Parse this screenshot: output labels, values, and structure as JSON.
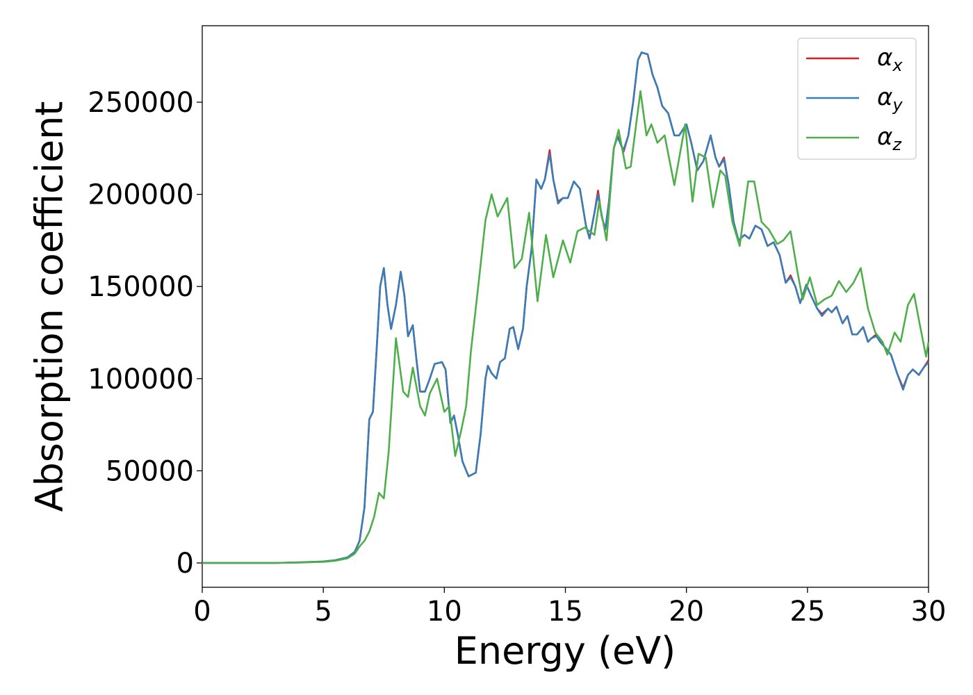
{
  "chart_data": {
    "type": "line",
    "xlabel": "Energy (eV)",
    "ylabel": "Absorption coefficient",
    "xlim": [
      0,
      30
    ],
    "ylim": [
      -13200,
      291500
    ],
    "xticks": [
      0,
      5,
      10,
      15,
      20,
      25,
      30
    ],
    "yticks": [
      0,
      50000,
      100000,
      150000,
      200000,
      250000
    ],
    "legend": "upper right",
    "series": [
      {
        "name": "αx",
        "color": "#e41a1c",
        "x": [
          0,
          1,
          2,
          3,
          4,
          5,
          5.5,
          6,
          6.3,
          6.5,
          6.7,
          6.9,
          7.05,
          7.2,
          7.35,
          7.5,
          7.65,
          7.8,
          8.0,
          8.2,
          8.35,
          8.5,
          8.7,
          8.85,
          9.0,
          9.2,
          9.4,
          9.6,
          9.9,
          10.05,
          10.25,
          10.4,
          10.55,
          10.75,
          11.0,
          11.3,
          11.5,
          11.7,
          11.8,
          11.95,
          12.15,
          12.3,
          12.5,
          12.7,
          12.85,
          13.05,
          13.25,
          13.4,
          13.6,
          13.8,
          14.0,
          14.15,
          14.35,
          14.5,
          14.7,
          14.9,
          15.1,
          15.35,
          15.6,
          15.85,
          16.0,
          16.2,
          16.35,
          16.5,
          16.65,
          16.8,
          17.0,
          17.15,
          17.4,
          17.6,
          17.8,
          18.0,
          18.15,
          18.4,
          18.6,
          18.8,
          19.0,
          19.25,
          19.5,
          19.7,
          19.85,
          20.0,
          20.2,
          20.45,
          20.7,
          20.85,
          21.0,
          21.2,
          21.35,
          21.55,
          21.75,
          21.95,
          22.15,
          22.4,
          22.6,
          22.85,
          23.1,
          23.35,
          23.6,
          23.85,
          24.1,
          24.3,
          24.5,
          24.7,
          24.95,
          25.15,
          25.4,
          25.6,
          25.85,
          26.0,
          26.2,
          26.45,
          26.65,
          26.85,
          27.05,
          27.3,
          27.5,
          27.65,
          27.85,
          28.0,
          28.2,
          28.45,
          28.7,
          28.95,
          29.15,
          29.35,
          29.6,
          29.8,
          30.0
        ],
        "values": [
          0,
          0,
          0,
          0,
          300,
          800,
          1500,
          3000,
          6000,
          12000,
          30000,
          78000,
          82000,
          115000,
          150000,
          160000,
          140000,
          127000,
          140000,
          158000,
          145000,
          123000,
          129000,
          110000,
          93000,
          93000,
          100000,
          108000,
          109000,
          105000,
          76000,
          80000,
          70000,
          55000,
          47000,
          49000,
          70000,
          100000,
          107000,
          103000,
          100000,
          109000,
          111000,
          127000,
          128000,
          116000,
          127000,
          150000,
          170000,
          208000,
          203000,
          208000,
          224000,
          208000,
          196000,
          198000,
          198000,
          207000,
          203000,
          183000,
          176000,
          190000,
          202000,
          188000,
          181000,
          196000,
          225000,
          232000,
          223000,
          232000,
          250000,
          273000,
          277000,
          276000,
          265000,
          258000,
          248000,
          244000,
          232000,
          232000,
          235000,
          238000,
          228000,
          213000,
          218000,
          225000,
          232000,
          220000,
          215000,
          220000,
          205000,
          185000,
          175000,
          178000,
          176000,
          183000,
          181000,
          172000,
          174000,
          167000,
          152000,
          156000,
          150000,
          141000,
          151000,
          145000,
          138000,
          135000,
          138000,
          136000,
          139000,
          130000,
          134000,
          124000,
          124000,
          128000,
          120000,
          122000,
          124000,
          120000,
          117000,
          113000,
          103000,
          95000,
          102000,
          105000,
          102000,
          106000,
          110000
        ]
      },
      {
        "name": "αy",
        "color": "#377eb8",
        "x": [
          0,
          1,
          2,
          3,
          4,
          5,
          5.5,
          6,
          6.3,
          6.5,
          6.7,
          6.9,
          7.05,
          7.2,
          7.35,
          7.5,
          7.65,
          7.8,
          8.0,
          8.2,
          8.35,
          8.5,
          8.7,
          8.85,
          9.0,
          9.2,
          9.4,
          9.6,
          9.9,
          10.05,
          10.25,
          10.4,
          10.55,
          10.75,
          11.0,
          11.3,
          11.5,
          11.7,
          11.8,
          11.95,
          12.15,
          12.3,
          12.5,
          12.7,
          12.85,
          13.05,
          13.25,
          13.4,
          13.6,
          13.8,
          14.0,
          14.15,
          14.35,
          14.5,
          14.7,
          14.9,
          15.1,
          15.35,
          15.6,
          15.85,
          16.0,
          16.2,
          16.35,
          16.5,
          16.65,
          16.8,
          17.0,
          17.15,
          17.4,
          17.6,
          17.8,
          18.0,
          18.15,
          18.4,
          18.6,
          18.8,
          19.0,
          19.25,
          19.5,
          19.7,
          19.85,
          20.0,
          20.2,
          20.45,
          20.7,
          20.85,
          21.0,
          21.2,
          21.35,
          21.55,
          21.75,
          21.95,
          22.15,
          22.4,
          22.6,
          22.85,
          23.1,
          23.35,
          23.6,
          23.85,
          24.1,
          24.3,
          24.5,
          24.7,
          24.95,
          25.15,
          25.4,
          25.6,
          25.85,
          26.0,
          26.2,
          26.45,
          26.65,
          26.85,
          27.05,
          27.3,
          27.5,
          27.65,
          27.85,
          28.0,
          28.2,
          28.45,
          28.7,
          28.95,
          29.15,
          29.35,
          29.6,
          29.8,
          30.0
        ],
        "values": [
          0,
          0,
          0,
          0,
          300,
          800,
          1500,
          3000,
          6000,
          12000,
          30000,
          78000,
          82000,
          115000,
          150000,
          160000,
          140000,
          127000,
          140000,
          158000,
          145000,
          123000,
          129000,
          110000,
          93000,
          93000,
          100000,
          108000,
          109000,
          105000,
          76000,
          80000,
          70000,
          55000,
          47000,
          49000,
          70000,
          100000,
          107000,
          103000,
          100000,
          109000,
          111000,
          127000,
          128000,
          116000,
          127000,
          150000,
          170000,
          208000,
          203000,
          208000,
          222000,
          208000,
          195000,
          198000,
          198000,
          207000,
          203000,
          183000,
          176000,
          190000,
          200000,
          188000,
          181000,
          196000,
          225000,
          231000,
          224000,
          232000,
          250000,
          273000,
          277000,
          276000,
          265000,
          258000,
          248000,
          244000,
          232000,
          232000,
          235000,
          238000,
          228000,
          213000,
          218000,
          225000,
          232000,
          220000,
          215000,
          219000,
          205000,
          185000,
          175000,
          178000,
          176000,
          183000,
          181000,
          172000,
          174000,
          167000,
          152000,
          155000,
          150000,
          141000,
          151000,
          145000,
          138000,
          134000,
          138000,
          136000,
          139000,
          130000,
          134000,
          124000,
          124000,
          128000,
          120000,
          122000,
          123000,
          120000,
          117000,
          113000,
          103000,
          94000,
          102000,
          105000,
          102000,
          106000,
          109000
        ]
      },
      {
        "name": "αz",
        "color": "#4daf4a",
        "x": [
          0,
          1,
          2,
          3,
          4,
          5,
          5.5,
          6,
          6.3,
          6.5,
          6.7,
          6.9,
          7.1,
          7.3,
          7.5,
          7.7,
          8.0,
          8.3,
          8.5,
          8.7,
          9.0,
          9.2,
          9.4,
          9.7,
          10.0,
          10.2,
          10.45,
          10.7,
          10.9,
          11.1,
          11.4,
          11.7,
          11.95,
          12.2,
          12.6,
          12.9,
          13.2,
          13.5,
          13.85,
          14.2,
          14.5,
          14.9,
          15.2,
          15.5,
          15.8,
          16.2,
          16.4,
          16.7,
          17.0,
          17.2,
          17.5,
          17.7,
          18.1,
          18.35,
          18.55,
          18.8,
          19.1,
          19.5,
          19.95,
          20.25,
          20.5,
          20.8,
          21.1,
          21.4,
          21.6,
          21.9,
          22.2,
          22.55,
          22.8,
          23.1,
          23.4,
          23.75,
          24.0,
          24.3,
          24.6,
          24.8,
          25.1,
          25.4,
          25.7,
          26.0,
          26.3,
          26.6,
          26.9,
          27.2,
          27.5,
          27.8,
          28.1,
          28.3,
          28.6,
          28.85,
          29.15,
          29.4,
          29.6,
          29.9,
          30.0
        ],
        "values": [
          0,
          0,
          0,
          0,
          200,
          600,
          1200,
          2500,
          5000,
          9000,
          12000,
          17000,
          25000,
          38000,
          35000,
          60000,
          122000,
          93000,
          90000,
          106000,
          85000,
          80000,
          92000,
          100000,
          82000,
          85000,
          58000,
          72000,
          85000,
          115000,
          150000,
          186000,
          200000,
          188000,
          198000,
          160000,
          165000,
          190000,
          142000,
          178000,
          155000,
          175000,
          163000,
          180000,
          182000,
          178000,
          196000,
          175000,
          225000,
          235000,
          214000,
          215000,
          256000,
          232000,
          238000,
          228000,
          232000,
          205000,
          238000,
          196000,
          222000,
          220000,
          193000,
          213000,
          210000,
          185000,
          172000,
          207000,
          207000,
          185000,
          181000,
          173000,
          175000,
          180000,
          157000,
          143000,
          155000,
          140000,
          143000,
          145000,
          153000,
          147000,
          152000,
          160000,
          138000,
          125000,
          120000,
          113000,
          125000,
          120000,
          140000,
          146000,
          132000,
          112000,
          120000
        ]
      }
    ]
  }
}
